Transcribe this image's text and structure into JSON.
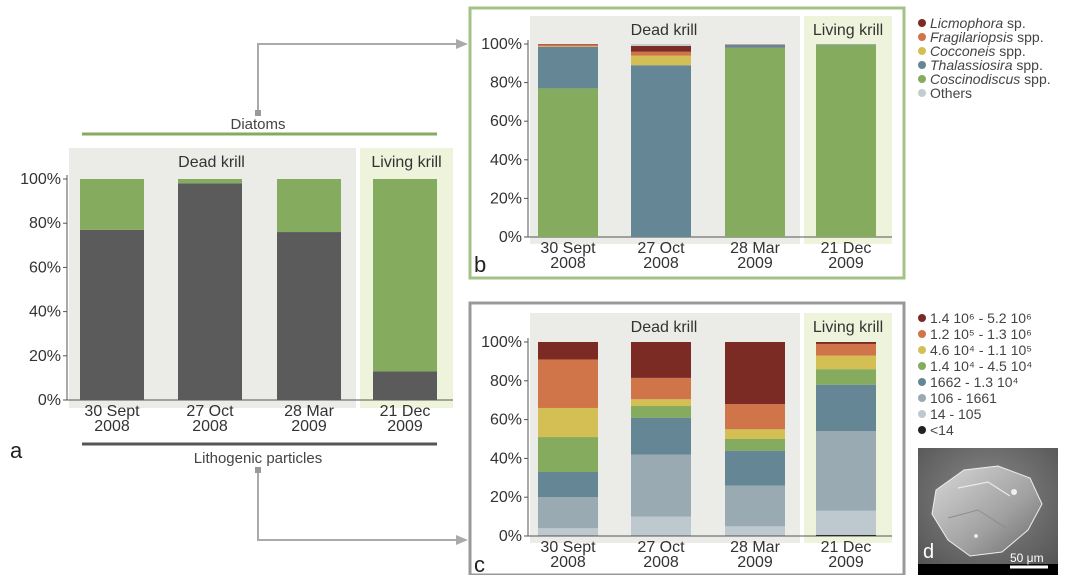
{
  "panel_labels": {
    "a": "a",
    "b": "b",
    "c": "c",
    "d": "d"
  },
  "group_labels": {
    "dead": "Dead krill",
    "living": "Living krill"
  },
  "bracket_labels": {
    "diatoms": "Diatoms",
    "lithogenic": "Lithogenic particles"
  },
  "scale_bar_label": "50 μm",
  "legend_diatoms": [
    {
      "name": "Licmophora",
      "suffix": " sp.",
      "italic": true,
      "color": "#7b2a24"
    },
    {
      "name": "Fragilariopsis",
      "suffix": " spp.",
      "italic": true,
      "color": "#d0744a"
    },
    {
      "name": "Cocconeis",
      "suffix": " spp.",
      "italic": true,
      "color": "#d4bf55"
    },
    {
      "name": "Thalassiosira",
      "suffix": " spp.",
      "italic": true,
      "color": "#658795"
    },
    {
      "name": "Coscinodiscus",
      "suffix": " spp.",
      "italic": true,
      "color": "#84ab5e"
    },
    {
      "name": "Others",
      "suffix": "",
      "italic": false,
      "color": "#c4ccd0"
    }
  ],
  "legend_sizes": [
    {
      "label": "1.4 10⁶ - 5.2 10⁶",
      "color": "#7b2a24"
    },
    {
      "label": "1.2 10⁵ - 1.3 10⁶",
      "color": "#d0744a"
    },
    {
      "label": "4.6 10⁴ - 1.1 10⁵",
      "color": "#d4bf55"
    },
    {
      "label": "1.4 10⁴ - 4.5 10⁴",
      "color": "#84ab5e"
    },
    {
      "label": "1662 - 1.3 10⁴",
      "color": "#658795"
    },
    {
      "label": "106 - 1661",
      "color": "#9aaab2"
    },
    {
      "label": "14 - 105",
      "color": "#bec9cf"
    },
    {
      "label": "<14",
      "color": "#222222"
    }
  ],
  "chart_data": [
    {
      "panel": "a",
      "type": "bar",
      "stacked": true,
      "categories": [
        "30 Sept 2008",
        "27 Oct 2008",
        "28 Mar 2009",
        "21 Dec 2009"
      ],
      "yticks": [
        "0%",
        "20%",
        "40%",
        "60%",
        "80%",
        "100%"
      ],
      "ylim": [
        0,
        100
      ],
      "series": [
        {
          "name": "Lithogenic particles",
          "color": "#5b5b5b",
          "values": [
            77,
            98,
            76,
            13
          ]
        },
        {
          "name": "Diatoms",
          "color": "#84ab5e",
          "values": [
            23,
            2,
            24,
            87
          ]
        }
      ]
    },
    {
      "panel": "b",
      "type": "bar",
      "stacked": true,
      "categories": [
        "30 Sept 2008",
        "27 Oct 2008",
        "28 Mar 2009",
        "21 Dec 2009"
      ],
      "yticks": [
        "0%",
        "20%",
        "40%",
        "60%",
        "80%",
        "100%"
      ],
      "ylim": [
        0,
        100
      ],
      "series": [
        {
          "name": "Coscinodiscus spp.",
          "color": "#84ab5e",
          "values": [
            77,
            0,
            98,
            99.5
          ]
        },
        {
          "name": "Thalassiosira spp.",
          "color": "#658795",
          "values": [
            21.5,
            89,
            1.5,
            0.3
          ]
        },
        {
          "name": "Cocconeis spp.",
          "color": "#d4bf55",
          "values": [
            0.3,
            5,
            0,
            0
          ]
        },
        {
          "name": "Fragilariopsis spp.",
          "color": "#d0744a",
          "values": [
            1,
            2,
            0.3,
            0
          ]
        },
        {
          "name": "Licmophora sp.",
          "color": "#7b2a24",
          "values": [
            0.2,
            3,
            0,
            0
          ]
        },
        {
          "name": "Others",
          "color": "#c4ccd0",
          "values": [
            0,
            1,
            0.2,
            0.2
          ]
        }
      ]
    },
    {
      "panel": "c",
      "type": "bar",
      "stacked": true,
      "categories": [
        "30 Sept 2008",
        "27 Oct 2008",
        "28 Mar 2009",
        "21 Dec 2009"
      ],
      "yticks": [
        "0%",
        "20%",
        "40%",
        "60%",
        "80%",
        "100%"
      ],
      "ylim": [
        0,
        100
      ],
      "series": [
        {
          "name": "<14",
          "color": "#222222",
          "values": [
            0.2,
            0.2,
            0.2,
            0.5
          ]
        },
        {
          "name": "14 - 105",
          "color": "#bec9cf",
          "values": [
            3.8,
            9.8,
            4.8,
            12.5
          ]
        },
        {
          "name": "106 - 1661",
          "color": "#9aaab2",
          "values": [
            16,
            32,
            21,
            41
          ]
        },
        {
          "name": "1662 - 1.3 10⁴",
          "color": "#658795",
          "values": [
            13,
            19,
            18,
            24
          ]
        },
        {
          "name": "1.4 10⁴ - 4.5 10⁴",
          "color": "#84ab5e",
          "values": [
            18,
            6,
            6,
            8
          ]
        },
        {
          "name": "4.6 10⁴ - 1.1 10⁵",
          "color": "#d4bf55",
          "values": [
            15,
            3.5,
            5,
            7
          ]
        },
        {
          "name": "1.2 10⁵ - 1.3 10⁶",
          "color": "#d0744a",
          "values": [
            25,
            11,
            13,
            6
          ]
        },
        {
          "name": "1.4 10⁶ - 5.2 10⁶",
          "color": "#7b2a24",
          "values": [
            9,
            18.5,
            32,
            1
          ]
        }
      ]
    }
  ]
}
